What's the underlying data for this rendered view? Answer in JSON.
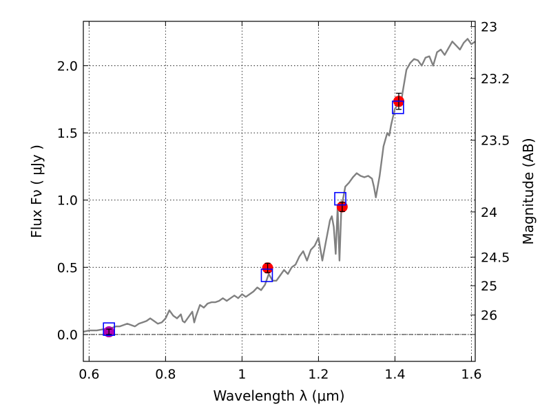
{
  "chart_data": {
    "type": "line",
    "xlabel": "Wavelength  λ (μm)",
    "ylabel": "Flux  Fν  ( μJy )",
    "y2label": "Magnitude (AB)",
    "xlim": [
      0.585,
      1.61
    ],
    "ylim": [
      -0.2,
      2.33
    ],
    "grid": true,
    "x_ticks": [
      {
        "v": 0.6,
        "label": "0.6"
      },
      {
        "v": 0.8,
        "label": "0.8"
      },
      {
        "v": 1.0,
        "label": "1"
      },
      {
        "v": 1.2,
        "label": "1.2"
      },
      {
        "v": 1.4,
        "label": "1.4"
      },
      {
        "v": 1.6,
        "label": "1.6"
      }
    ],
    "y_ticks": [
      {
        "v": 0.0,
        "label": "0.0"
      },
      {
        "v": 0.5,
        "label": "0.5"
      },
      {
        "v": 1.0,
        "label": "1.0"
      },
      {
        "v": 1.5,
        "label": "1.5"
      },
      {
        "v": 2.0,
        "label": "2.0"
      }
    ],
    "mag_ticks": [
      {
        "mag": 23,
        "label": "23"
      },
      {
        "mag": 23.2,
        "label": "23.2"
      },
      {
        "mag": 23.5,
        "label": "23.5"
      },
      {
        "mag": 24,
        "label": "24"
      },
      {
        "mag": 24.5,
        "label": "24.5"
      },
      {
        "mag": 25,
        "label": "25"
      },
      {
        "mag": 26,
        "label": "26"
      }
    ],
    "zero_line": 0.0,
    "series": [
      {
        "kind": "model-spectrum",
        "color": "#808080",
        "x": [
          0.585,
          0.6,
          0.62,
          0.64,
          0.65,
          0.66,
          0.67,
          0.68,
          0.69,
          0.7,
          0.71,
          0.72,
          0.73,
          0.74,
          0.75,
          0.76,
          0.77,
          0.78,
          0.79,
          0.8,
          0.81,
          0.82,
          0.83,
          0.84,
          0.845,
          0.85,
          0.86,
          0.87,
          0.875,
          0.88,
          0.89,
          0.9,
          0.91,
          0.92,
          0.93,
          0.94,
          0.95,
          0.96,
          0.97,
          0.98,
          0.99,
          1.0,
          1.01,
          1.02,
          1.03,
          1.04,
          1.05,
          1.06,
          1.07,
          1.08,
          1.09,
          1.1,
          1.11,
          1.12,
          1.13,
          1.14,
          1.15,
          1.16,
          1.17,
          1.18,
          1.19,
          1.2,
          1.21,
          1.22,
          1.23,
          1.235,
          1.24,
          1.245,
          1.25,
          1.255,
          1.26,
          1.265,
          1.27,
          1.28,
          1.29,
          1.3,
          1.31,
          1.32,
          1.33,
          1.34,
          1.345,
          1.35,
          1.36,
          1.37,
          1.38,
          1.385,
          1.39,
          1.4,
          1.41,
          1.415,
          1.42,
          1.43,
          1.44,
          1.45,
          1.46,
          1.47,
          1.48,
          1.49,
          1.5,
          1.51,
          1.52,
          1.53,
          1.54,
          1.55,
          1.56,
          1.57,
          1.58,
          1.59,
          1.6,
          1.61
        ],
        "y": [
          0.02,
          0.03,
          0.03,
          0.04,
          0.04,
          0.05,
          0.06,
          0.06,
          0.07,
          0.08,
          0.07,
          0.06,
          0.08,
          0.09,
          0.1,
          0.12,
          0.1,
          0.08,
          0.09,
          0.12,
          0.18,
          0.14,
          0.12,
          0.15,
          0.1,
          0.09,
          0.13,
          0.17,
          0.09,
          0.14,
          0.22,
          0.2,
          0.23,
          0.24,
          0.24,
          0.25,
          0.27,
          0.25,
          0.27,
          0.29,
          0.27,
          0.3,
          0.28,
          0.3,
          0.32,
          0.35,
          0.33,
          0.37,
          0.45,
          0.4,
          0.4,
          0.44,
          0.48,
          0.45,
          0.5,
          0.52,
          0.58,
          0.62,
          0.55,
          0.63,
          0.66,
          0.72,
          0.55,
          0.7,
          0.85,
          0.88,
          0.8,
          0.6,
          0.95,
          0.55,
          0.95,
          1.02,
          1.1,
          1.13,
          1.17,
          1.2,
          1.18,
          1.17,
          1.18,
          1.16,
          1.1,
          1.02,
          1.18,
          1.4,
          1.5,
          1.48,
          1.56,
          1.68,
          1.72,
          1.7,
          1.8,
          1.97,
          2.02,
          2.05,
          2.04,
          2.0,
          2.06,
          2.07,
          2.0,
          2.1,
          2.12,
          2.08,
          2.13,
          2.18,
          2.15,
          2.12,
          2.17,
          2.2,
          2.16,
          2.18
        ]
      },
      {
        "kind": "photometry-points",
        "color": "#ff0000",
        "points": [
          {
            "x": 1.067,
            "y": 0.495,
            "err": 0.035
          },
          {
            "x": 1.262,
            "y": 0.95,
            "err": 0.035
          },
          {
            "x": 1.41,
            "y": 1.735,
            "err": 0.06
          }
        ]
      },
      {
        "kind": "photometry-points",
        "color": "#b000b0",
        "points": [
          {
            "x": 0.652,
            "y": 0.02,
            "err": 0.02
          }
        ]
      },
      {
        "kind": "model-band-flux",
        "color": "#0000ff",
        "points": [
          {
            "x": 0.652,
            "y": 0.04
          },
          {
            "x": 1.065,
            "y": 0.44
          },
          {
            "x": 1.257,
            "y": 1.01
          },
          {
            "x": 1.408,
            "y": 1.69
          }
        ]
      }
    ]
  }
}
